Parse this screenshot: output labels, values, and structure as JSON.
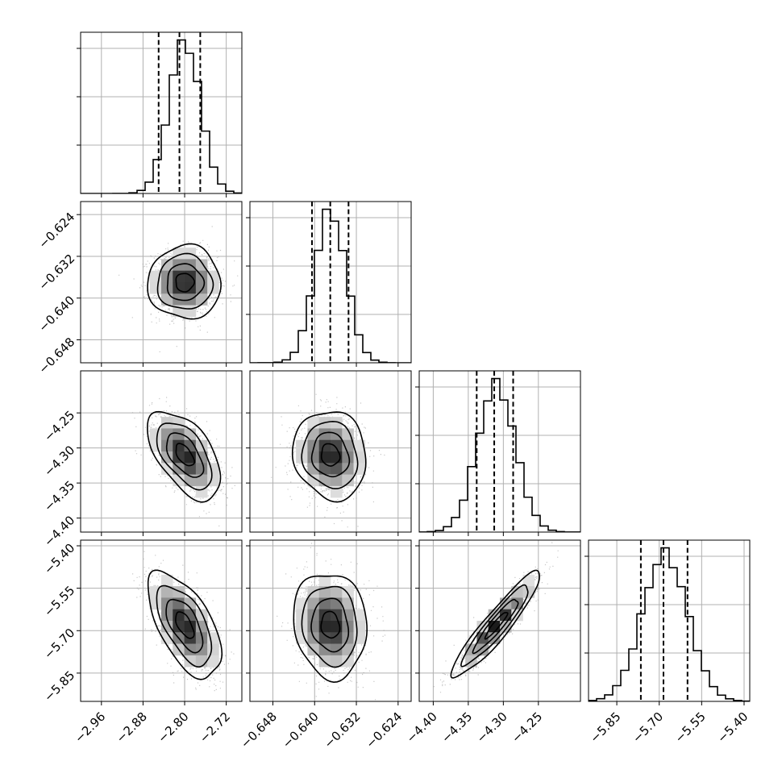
{
  "chart_data": {
    "type": "corner",
    "grid": true,
    "parameters": [
      {
        "title": "",
        "label": "",
        "center": -2.8,
        "sigma": 0.03,
        "quantiles": [
          -2.85,
          -2.81,
          -2.77
        ],
        "range": [
          -3.0,
          -2.69
        ],
        "ticks": [
          "−2.96",
          "−2.88",
          "−2.80",
          "−2.72"
        ],
        "tick_values": [
          -2.96,
          -2.88,
          -2.8,
          -2.72
        ]
      },
      {
        "title": "",
        "label": "",
        "center": -0.637,
        "sigma": 0.003,
        "quantiles": [
          -0.6405,
          -0.637,
          -0.6335
        ],
        "range": [
          -0.6524,
          -0.6215
        ],
        "ticks": [
          "−0.648",
          "−0.640",
          "−0.632",
          "−0.624"
        ],
        "tick_values": [
          -0.648,
          -0.64,
          -0.632,
          -0.624
        ]
      },
      {
        "title": "",
        "label": "",
        "center": -4.31,
        "sigma": 0.027,
        "quantiles": [
          -4.338,
          -4.313,
          -4.286
        ],
        "range": [
          -4.42,
          -4.19
        ],
        "ticks": [
          "−4.40",
          "−4.35",
          "−4.30",
          "−4.25"
        ],
        "tick_values": [
          -4.4,
          -4.35,
          -4.3,
          -4.25
        ]
      },
      {
        "title": "",
        "label": "",
        "center": -5.68,
        "sigma": 0.08,
        "quantiles": [
          -5.765,
          -5.685,
          -5.6
        ],
        "range": [
          -5.95,
          -5.38
        ],
        "ticks": [
          "−5.85",
          "−5.70",
          "−5.55",
          "−5.40"
        ],
        "tick_values": [
          -5.85,
          -5.7,
          -5.55,
          -5.4
        ]
      }
    ],
    "correlations": [
      {
        "pair": [
          0,
          1
        ],
        "rho": 0.0
      },
      {
        "pair": [
          0,
          2
        ],
        "rho": -0.55
      },
      {
        "pair": [
          1,
          2
        ],
        "rho": -0.1
      },
      {
        "pair": [
          0,
          3
        ],
        "rho": -0.6
      },
      {
        "pair": [
          1,
          3
        ],
        "rho": -0.1
      },
      {
        "pair": [
          2,
          3
        ],
        "rho": 0.93
      }
    ],
    "contour_levels_sigma": [
      0.5,
      1.0,
      1.5,
      2.0
    ],
    "histogram_bins": 20
  }
}
